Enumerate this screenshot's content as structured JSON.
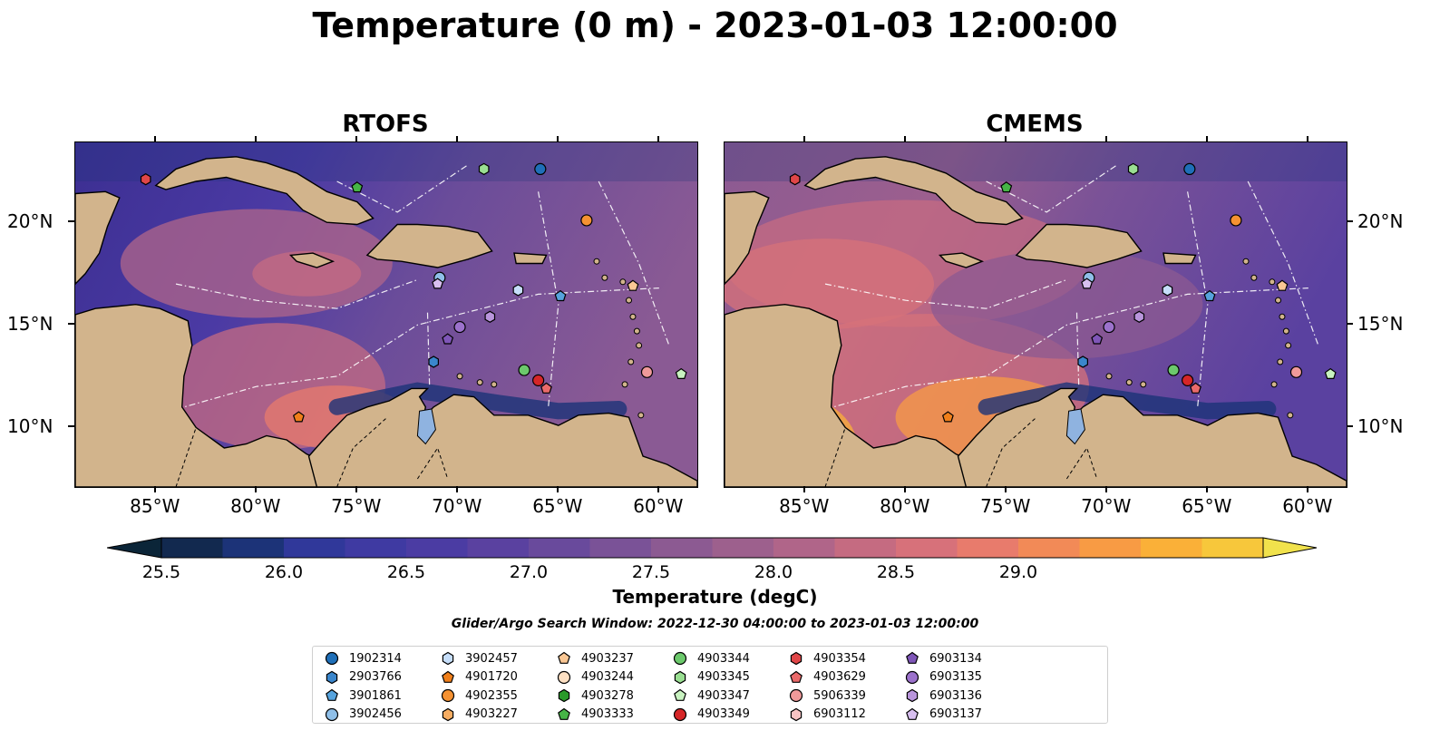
{
  "title": "Temperature (0 m) - 2023-01-03 12:00:00",
  "panels": [
    {
      "title": "RTOFS"
    },
    {
      "title": "CMEMS"
    }
  ],
  "x_ticks": [
    "85°W",
    "80°W",
    "75°W",
    "70°W",
    "65°W",
    "60°W"
  ],
  "y_ticks": [
    "20°N",
    "15°N",
    "10°N"
  ],
  "colorbar": {
    "label": "Temperature (degC)",
    "ticks": [
      "25.5",
      "26.0",
      "26.5",
      "27.0",
      "27.5",
      "28.0",
      "28.5",
      "29.0"
    ],
    "colors": [
      "#0b2538",
      "#12294f",
      "#1c3378",
      "#30389a",
      "#3f3aa2",
      "#4b3ca3",
      "#5a41a0",
      "#694a9c",
      "#7a5297",
      "#8c5a92",
      "#9d608d",
      "#b06589",
      "#c56b81",
      "#d7717a",
      "#e87b6c",
      "#f28a57",
      "#f89b44",
      "#fab038",
      "#f7c73b",
      "#f1e24c"
    ]
  },
  "search_window": "Glider/Argo Search Window: 2022-12-30 04:00:00 to 2023-01-03 12:00:00",
  "legend": [
    {
      "id": "1902314",
      "color": "#1f6fb8",
      "marker": "circle"
    },
    {
      "id": "2903766",
      "color": "#3a86cc",
      "marker": "hexagon"
    },
    {
      "id": "3901861",
      "color": "#56a3dd",
      "marker": "pentagon"
    },
    {
      "id": "3902456",
      "color": "#8fbfe8",
      "marker": "circle"
    },
    {
      "id": "3902457",
      "color": "#c6defa",
      "marker": "hexagon"
    },
    {
      "id": "4901720",
      "color": "#f07f1a",
      "marker": "pentagon"
    },
    {
      "id": "4902355",
      "color": "#f59232",
      "marker": "circle"
    },
    {
      "id": "4903227",
      "color": "#f7ad62",
      "marker": "hexagon"
    },
    {
      "id": "4903237",
      "color": "#fac794",
      "marker": "pentagon"
    },
    {
      "id": "4903244",
      "color": "#fde0c3",
      "marker": "circle"
    },
    {
      "id": "4903278",
      "color": "#2a9a2a",
      "marker": "hexagon"
    },
    {
      "id": "4903333",
      "color": "#46b446",
      "marker": "pentagon"
    },
    {
      "id": "4903344",
      "color": "#6cc96c",
      "marker": "circle"
    },
    {
      "id": "4903345",
      "color": "#9adf92",
      "marker": "hexagon"
    },
    {
      "id": "4903347",
      "color": "#c8f2c0",
      "marker": "pentagon"
    },
    {
      "id": "4903349",
      "color": "#d62628",
      "marker": "circle"
    },
    {
      "id": "4903354",
      "color": "#e04648",
      "marker": "hexagon"
    },
    {
      "id": "4903629",
      "color": "#ea6a6a",
      "marker": "pentagon"
    },
    {
      "id": "5906339",
      "color": "#f09a9a",
      "marker": "circle"
    },
    {
      "id": "6903112",
      "color": "#f8c4c4",
      "marker": "hexagon"
    },
    {
      "id": "6903134",
      "color": "#7f56b8",
      "marker": "pentagon"
    },
    {
      "id": "6903135",
      "color": "#9c72cc",
      "marker": "circle"
    },
    {
      "id": "6903136",
      "color": "#b995dc",
      "marker": "hexagon"
    },
    {
      "id": "6903137",
      "color": "#d8bff0",
      "marker": "pentagon"
    }
  ],
  "markers_on_map": [
    {
      "id": "4903344",
      "lon": -66.7,
      "lat": 12.8,
      "panels": "both"
    },
    {
      "id": "4903349",
      "lon": -66.0,
      "lat": 12.3,
      "panels": "both"
    },
    {
      "id": "4903629",
      "lon": -65.6,
      "lat": 11.9,
      "panels": "both"
    },
    {
      "id": "1902314",
      "lon": -65.9,
      "lat": 22.6,
      "panels": "both"
    },
    {
      "id": "4902355",
      "lon": -63.6,
      "lat": 20.1,
      "panels": "both"
    },
    {
      "id": "4903345",
      "lon": -68.7,
      "lat": 22.6,
      "panels": "both"
    },
    {
      "id": "4903333",
      "lon": -75.0,
      "lat": 21.7,
      "panels": "both"
    },
    {
      "id": "5906339",
      "lon": -60.6,
      "lat": 12.7,
      "panels": "both"
    },
    {
      "id": "4903347",
      "lon": -58.9,
      "lat": 12.6,
      "panels": "both"
    },
    {
      "id": "3901861",
      "lon": -64.9,
      "lat": 16.4,
      "panels": "both"
    },
    {
      "id": "3902457",
      "lon": -67.0,
      "lat": 16.7,
      "panels": "both"
    },
    {
      "id": "3902456",
      "lon": -70.9,
      "lat": 17.3,
      "panels": "both"
    },
    {
      "id": "6903137",
      "lon": -71.0,
      "lat": 17.0,
      "panels": "both"
    },
    {
      "id": "6903135",
      "lon": -69.9,
      "lat": 14.9,
      "panels": "both"
    },
    {
      "id": "6903136",
      "lon": -68.4,
      "lat": 15.4,
      "panels": "both"
    },
    {
      "id": "6903134",
      "lon": -70.5,
      "lat": 14.3,
      "panels": "both"
    },
    {
      "id": "2903766",
      "lon": -71.2,
      "lat": 13.2,
      "panels": "both"
    },
    {
      "id": "4901720",
      "lon": -77.9,
      "lat": 10.5,
      "panels": "both"
    },
    {
      "id": "4903354",
      "lon": -85.5,
      "lat": 22.1,
      "panels": "both"
    },
    {
      "id": "4903237",
      "lon": -61.3,
      "lat": 16.9,
      "panels": "both"
    }
  ]
}
